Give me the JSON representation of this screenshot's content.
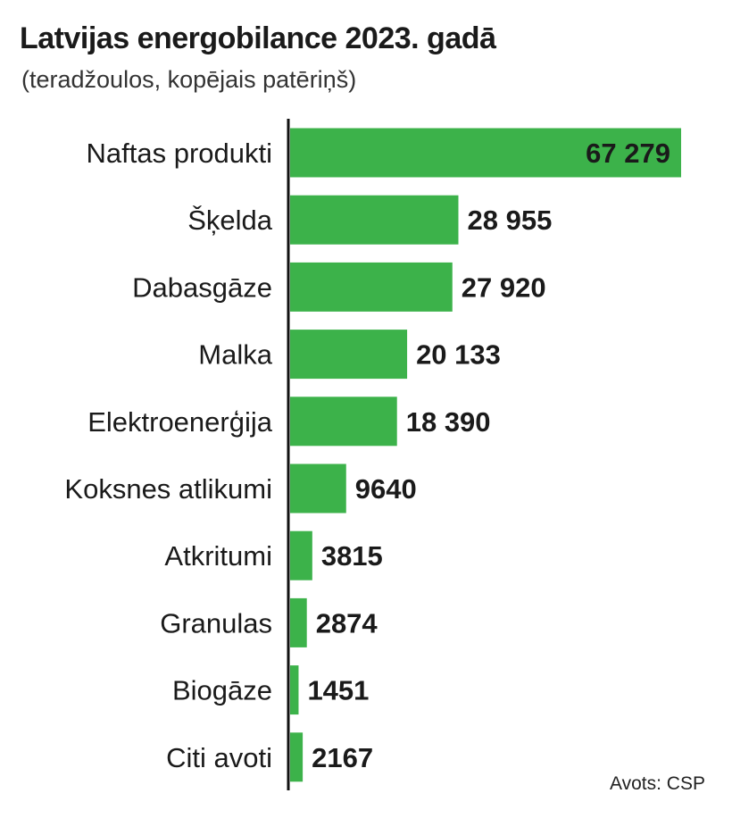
{
  "header": {
    "title": "Latvijas energobilance 2023. gadā",
    "subtitle": "(teradžoulos, kopējais patēriņš)"
  },
  "source": "Avots: CSP",
  "colors": {
    "bar": "#3cb24a",
    "axis": "#111111"
  },
  "chart_data": {
    "type": "bar",
    "orientation": "horizontal",
    "title": "Latvijas energobilance 2023. gadā",
    "subtitle": "(teradžoulos, kopējais patēriņš)",
    "xlabel": "",
    "ylabel": "",
    "categories": [
      "Naftas produkti",
      "Šķelda",
      "Dabasgāze",
      "Malka",
      "Elektroenerģija",
      "Koksnes atlikumi",
      "Atkritumi",
      "Granulas",
      "Biogāze",
      "Citi avoti"
    ],
    "values": [
      67279,
      28955,
      27920,
      20133,
      18390,
      9640,
      3815,
      2874,
      1451,
      2167
    ],
    "value_labels": [
      "67 279",
      "28 955",
      "27 920",
      "20 133",
      "18 390",
      "9640",
      "3815",
      "2874",
      "1451",
      "2167"
    ],
    "xlim": [
      0,
      67279
    ],
    "grid": false,
    "legend": "none"
  }
}
